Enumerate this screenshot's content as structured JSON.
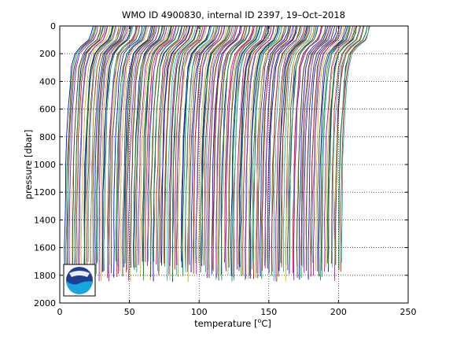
{
  "chart_data": {
    "type": "line",
    "title": "WMO ID 4900830, internal ID 2397, 19–Oct–2018",
    "xlabel": "temperature [°C]",
    "xlabel_parts": [
      "temperature [",
      "o",
      "C]"
    ],
    "ylabel": "pressure [dbar]",
    "xlim": [
      0,
      250
    ],
    "ylim": [
      2000,
      0
    ],
    "y_reversed": true,
    "x_ticks": [
      0,
      50,
      100,
      150,
      200,
      250
    ],
    "y_ticks": [
      0,
      200,
      400,
      600,
      800,
      1000,
      1200,
      1400,
      1600,
      1800,
      2000
    ],
    "grid": "dotted",
    "legend": "none",
    "profile_count": 200,
    "profile_offset_step_c": 1,
    "profile_shape": {
      "pressure": [
        0,
        50,
        100,
        150,
        200,
        300,
        400,
        600,
        800,
        1000,
        1200,
        1400,
        1600
      ],
      "temperature_first_profile": [
        24,
        23,
        21,
        15,
        11,
        8.5,
        7.5,
        6.0,
        5.0,
        4.5,
        4.0,
        3.8,
        3.6
      ]
    },
    "max_depth_dbar_range": [
      1700,
      1850
    ],
    "colors": [
      "#0000ff",
      "#00aa00",
      "#ff0000",
      "#00bfbf",
      "#bf00bf",
      "#bfbf00",
      "#404040"
    ]
  },
  "logo": {
    "text": "NOAA",
    "name": "noaa-logo"
  }
}
